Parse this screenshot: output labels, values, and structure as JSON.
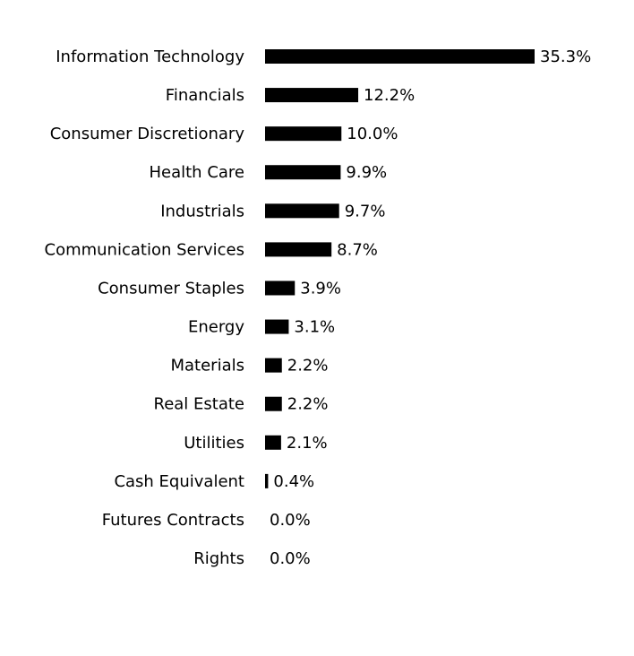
{
  "chart_data": {
    "type": "bar",
    "orientation": "horizontal",
    "categories": [
      "Information Technology",
      "Financials",
      "Consumer Discretionary",
      "Health Care",
      "Industrials",
      "Communication Services",
      "Consumer Staples",
      "Energy",
      "Materials",
      "Real Estate",
      "Utilities",
      "Cash Equivalent",
      "Futures Contracts",
      "Rights"
    ],
    "values": [
      35.3,
      12.2,
      10.0,
      9.9,
      9.7,
      8.7,
      3.9,
      3.1,
      2.2,
      2.2,
      2.1,
      0.4,
      0.0,
      0.0
    ],
    "value_labels": [
      "35.3%",
      "12.2%",
      "10.0%",
      "9.9%",
      "9.7%",
      "8.7%",
      "3.9%",
      "3.1%",
      "2.2%",
      "2.2%",
      "2.1%",
      "0.4%",
      "0.0%",
      "0.0%"
    ],
    "color": "#000000"
  }
}
